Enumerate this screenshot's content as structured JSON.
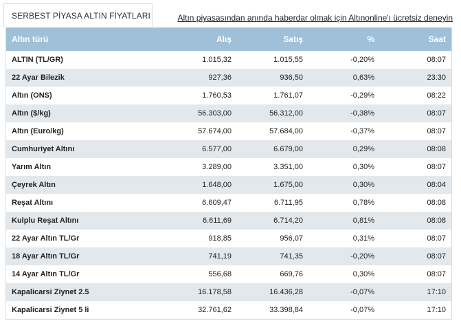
{
  "header": {
    "tab_title": "SERBEST PİYASA ALTIN FİYATLARI",
    "promo_link": "Altın piyasasından anında haberdar olmak için Altınonline'ı ücretsiz deneyin"
  },
  "table": {
    "columns": [
      "Altın türü",
      "Alış",
      "Satış",
      "%",
      "Saat"
    ],
    "rows": [
      {
        "name": "ALTIN (TL/GR)",
        "buy": "1.015,32",
        "sell": "1.015,55",
        "change": "-0,20%",
        "time": "08:07"
      },
      {
        "name": "22 Ayar Bilezik",
        "buy": "927,36",
        "sell": "936,50",
        "change": "0,63%",
        "time": "23:30"
      },
      {
        "name": "Altın (ONS)",
        "buy": "1.760,53",
        "sell": "1.761,07",
        "change": "-0,29%",
        "time": "08:22"
      },
      {
        "name": "Altın ($/kg)",
        "buy": "56.303,00",
        "sell": "56.312,00",
        "change": "-0,38%",
        "time": "08:07"
      },
      {
        "name": "Altın (Euro/kg)",
        "buy": "57.674,00",
        "sell": "57.684,00",
        "change": "-0,37%",
        "time": "08:07"
      },
      {
        "name": "Cumhuriyet Altını",
        "buy": "6.577,00",
        "sell": "6.679,00",
        "change": "0,29%",
        "time": "08:08"
      },
      {
        "name": "Yarım Altın",
        "buy": "3.289,00",
        "sell": "3.351,00",
        "change": "0,30%",
        "time": "08:07"
      },
      {
        "name": "Çeyrek Altın",
        "buy": "1.648,00",
        "sell": "1.675,00",
        "change": "0,30%",
        "time": "08:04"
      },
      {
        "name": "Reşat Altını",
        "buy": "6.609,47",
        "sell": "6.711,95",
        "change": "0,78%",
        "time": "08:08"
      },
      {
        "name": "Kulplu Reşat Altını",
        "buy": "6.611,69",
        "sell": "6.714,20",
        "change": "0,81%",
        "time": "08:08"
      },
      {
        "name": "22 Ayar Altın TL/Gr",
        "buy": "918,85",
        "sell": "956,07",
        "change": "0,31%",
        "time": "08:07"
      },
      {
        "name": "18 Ayar Altın TL/Gr",
        "buy": "741,19",
        "sell": "741,35",
        "change": "-0,20%",
        "time": "08:07"
      },
      {
        "name": "14 Ayar Altın TL/Gr",
        "buy": "556,68",
        "sell": "669,76",
        "change": "0,30%",
        "time": "08:07"
      },
      {
        "name": "Kapalicarsi Ziynet 2.5",
        "buy": "16.178,58",
        "sell": "16.436,28",
        "change": "-0,07%",
        "time": "17:10"
      },
      {
        "name": "Kapalicarsi Ziynet 5 li",
        "buy": "32.761,62",
        "sell": "33.398,84",
        "change": "-0,07%",
        "time": "17:10"
      }
    ]
  },
  "colors": {
    "header_bg": "#9fc0d8",
    "alt_row_bg": "#e3e8ec",
    "border": "#dadada"
  }
}
